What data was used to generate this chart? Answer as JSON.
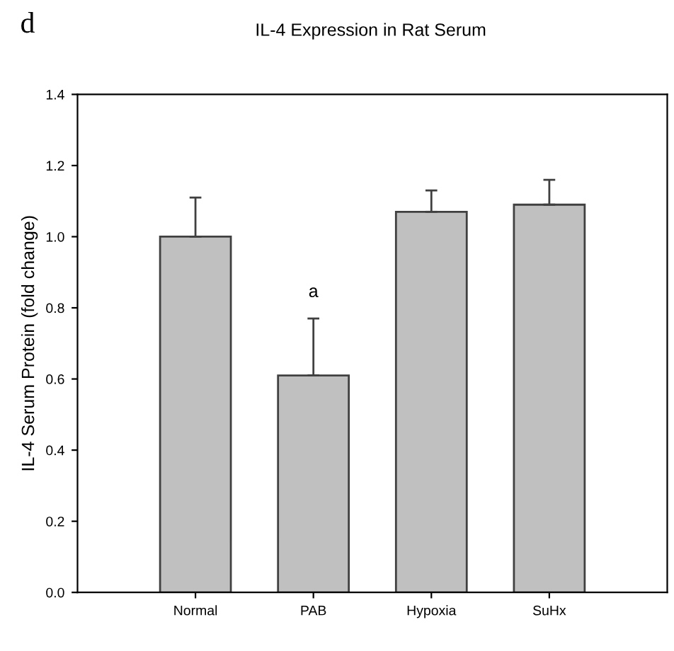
{
  "chart_data": {
    "type": "bar",
    "title": "IL-4 Expression in Rat Serum",
    "ylabel": "IL-4 Serum Protein (fold change)",
    "categories": [
      "Normal",
      "PAB",
      "Hypoxia",
      "SuHx"
    ],
    "values": [
      1.0,
      0.61,
      1.07,
      1.09
    ],
    "errors": [
      [
        1.0,
        1.11
      ],
      [
        0.61,
        0.77
      ],
      [
        1.07,
        1.13
      ],
      [
        1.09,
        1.16
      ]
    ],
    "color": "#c0c0c0",
    "ylim": [
      0,
      1.4
    ],
    "yticks": [
      {
        "value": 0,
        "label": "0.0"
      },
      0.2,
      0.4,
      0.6,
      0.8,
      {
        "value": 1,
        "label": "1.0"
      },
      1.2,
      1.4
    ],
    "annotations": [
      "d",
      "a"
    ],
    "grid": false,
    "legend": false
  }
}
